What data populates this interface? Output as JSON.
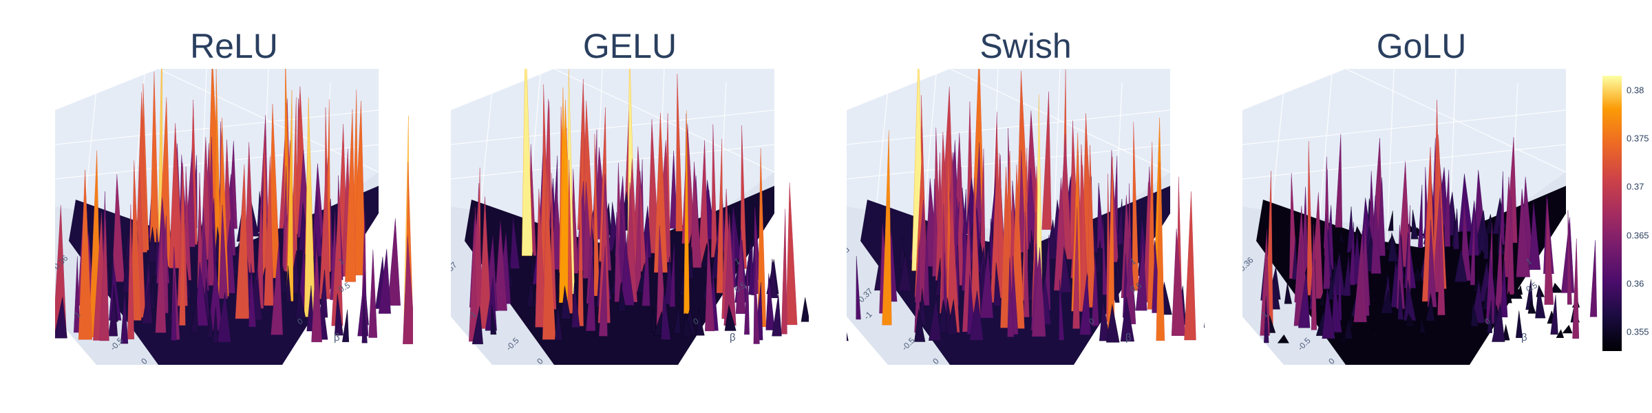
{
  "chart_data": [
    {
      "type": "surface",
      "title": "ReLU",
      "axis_ticks": {
        "x": [
          "-1",
          "-0.5",
          "0"
        ],
        "y": [
          "0",
          "0.5",
          "1"
        ],
        "z_partial": "-0.36"
      },
      "ylabel": "β",
      "zlim": [
        0.353,
        0.381
      ],
      "base_value": 0.357,
      "spike_values": [
        0.38,
        0.379,
        0.376,
        0.374,
        0.372,
        0.369,
        0.367,
        0.365,
        0.363,
        0.361
      ],
      "roughness": 0.75
    },
    {
      "type": "surface",
      "title": "GELU",
      "axis_ticks": {
        "x": [
          "-1",
          "-0.5",
          "0"
        ],
        "y": [
          "0",
          "0.5",
          "1"
        ],
        "z_partial": "37"
      },
      "ylabel": "β",
      "zlim": [
        0.353,
        0.381
      ],
      "base_value": 0.356,
      "spike_values": [
        0.381,
        0.378,
        0.375,
        0.372,
        0.369,
        0.366,
        0.364,
        0.362,
        0.36
      ],
      "roughness": 0.7
    },
    {
      "type": "surface",
      "title": "Swish",
      "axis_ticks": {
        "x": [
          "-1",
          "-0.5",
          "0"
        ],
        "y": [
          "0",
          "0.5",
          "1"
        ],
        "z_partial": "0.37",
        "z_partial_top": "d"
      },
      "ylabel": "β",
      "zlim": [
        0.353,
        0.381
      ],
      "base_value": 0.357,
      "spike_values": [
        0.381,
        0.377,
        0.375,
        0.373,
        0.37,
        0.367,
        0.365,
        0.363,
        0.361
      ],
      "roughness": 0.75
    },
    {
      "type": "surface",
      "title": "GoLU",
      "axis_ticks": {
        "x": [
          "-1",
          "-0.5",
          "0"
        ],
        "y": [
          "0",
          "0.5",
          "1"
        ],
        "z_partial": "0.36"
      },
      "ylabel": "β",
      "zlim": [
        0.353,
        0.381
      ],
      "base_value": 0.354,
      "spike_values": [
        0.372,
        0.366,
        0.362,
        0.36,
        0.358,
        0.357
      ],
      "roughness": 0.45
    }
  ],
  "colorbar": {
    "colorscale": "inferno",
    "range": [
      0.353,
      0.3815
    ],
    "ticks": [
      "0.38",
      "0.375",
      "0.37",
      "0.365",
      "0.36",
      "0.355"
    ],
    "tick_values": [
      0.38,
      0.375,
      0.37,
      0.365,
      0.36,
      0.355
    ]
  },
  "colors": {
    "scene_background": "#e5ecf6",
    "grid": "#ffffff",
    "title_text": "#2a3f5f"
  }
}
